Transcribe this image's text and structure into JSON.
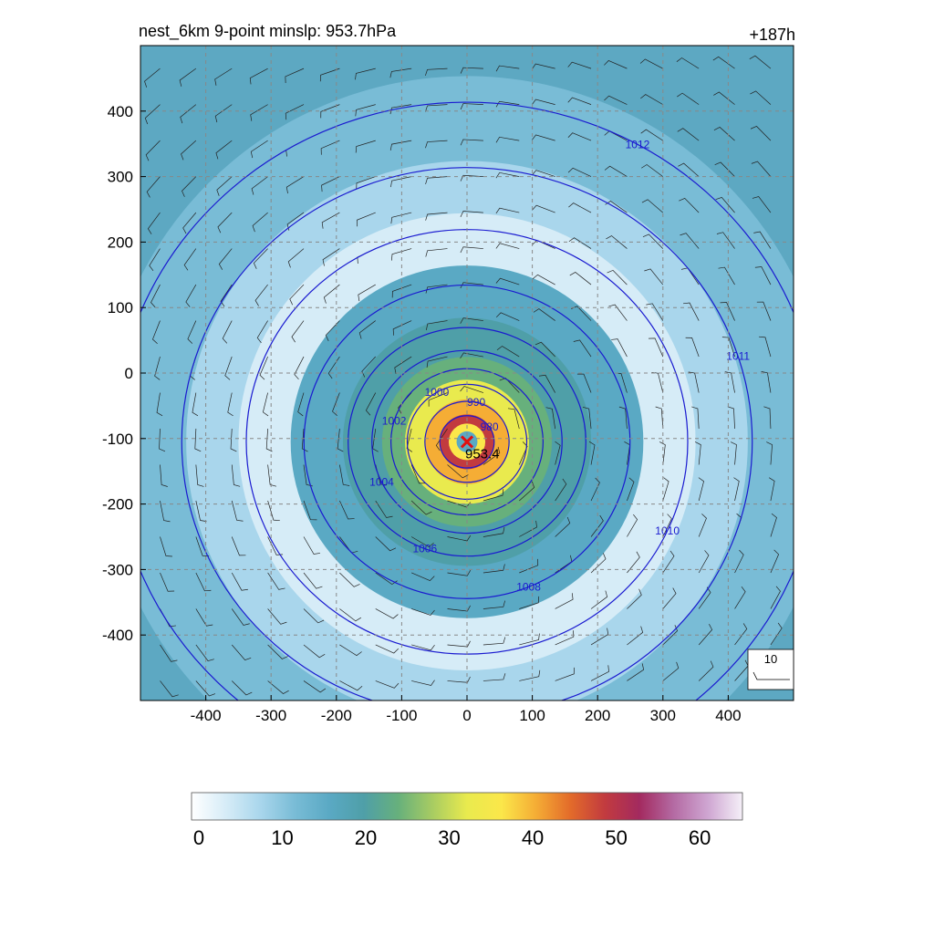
{
  "chart_data": {
    "type": "heatmap",
    "title": "nest_6km  9-point minslp: 953.7hPa",
    "subtitle_right": "+187h",
    "x_ticks": [
      -400,
      -300,
      -200,
      -100,
      0,
      100,
      200,
      300,
      400
    ],
    "y_ticks": [
      400,
      300,
      200,
      100,
      0,
      -100,
      -200,
      -300,
      -400
    ],
    "xlim": [
      -500,
      500
    ],
    "ylim": [
      -500,
      500
    ],
    "grid": true,
    "field": {
      "description_units": "wind speed",
      "colorbar_ticks": [
        0,
        10,
        20,
        30,
        40,
        50,
        60
      ],
      "colorbar_range": [
        0,
        66
      ],
      "colormap": [
        "#ffffff",
        "#d6ecf7",
        "#a9d6ec",
        "#79bcd6",
        "#5aa9c4",
        "#4f9fa8",
        "#67b07c",
        "#a8cc62",
        "#e9ea4e",
        "#fbe74a",
        "#f5ad35",
        "#e36b2a",
        "#c23b3f",
        "#a32a5f",
        "#b46aa3",
        "#cfa6d2",
        "#f5f0f8"
      ],
      "rings_by_radius_km": [
        {
          "r": 560,
          "value": 14
        },
        {
          "r": 430,
          "value": 9
        },
        {
          "r": 350,
          "value": 4
        },
        {
          "r": 270,
          "value": 15
        },
        {
          "r": 190,
          "value": 20
        },
        {
          "r": 130,
          "value": 25
        },
        {
          "r": 95,
          "value": 32
        },
        {
          "r": 65,
          "value": 40
        },
        {
          "r": 42,
          "value": 50
        },
        {
          "r": 28,
          "value": 36
        },
        {
          "r": 16,
          "value": 16
        }
      ],
      "center": [
        0,
        -105
      ]
    },
    "pressure_contours": {
      "color": "#1a1ad0",
      "levels": [
        {
          "label": "980",
          "radius": 40
        },
        {
          "label": "990",
          "radius": 62
        },
        {
          "label": "1000",
          "radius": 88
        },
        {
          "label": "1002",
          "radius": 112
        },
        {
          "label": "1004",
          "radius": 140
        },
        {
          "label": "1006",
          "radius": 175
        },
        {
          "label": "1008",
          "radius": 240
        },
        {
          "label": "1010",
          "radius": 325
        },
        {
          "label": "1011",
          "radius": 420
        },
        {
          "label": "1012",
          "radius": 520
        }
      ]
    },
    "center_marker": {
      "x": 0,
      "y": -105,
      "label": "953.4"
    },
    "wind_key_label": "10"
  }
}
